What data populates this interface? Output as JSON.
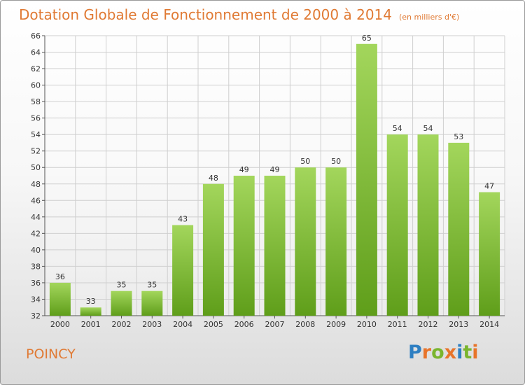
{
  "header": {
    "title": "Dotation Globale de Fonctionnement de 2000 à 2014",
    "unit": "(en milliers d'€)"
  },
  "footer": {
    "commune": "POINCY",
    "logo_text": "Proxiti",
    "logo_colors": [
      "#2e7fc2",
      "#e8742a",
      "#7ab52e",
      "#e8742a",
      "#2e7fc2",
      "#7ab52e",
      "#e8742a"
    ]
  },
  "colors": {
    "title": "#e07a34",
    "bar_top": "#a3d65c",
    "bar_bottom": "#5f9e1a",
    "grid": "#cfcfcf"
  },
  "chart_data": {
    "type": "bar",
    "title": "Dotation Globale de Fonctionnement de 2000 à 2014",
    "xlabel": "",
    "ylabel": "",
    "categories": [
      "2000",
      "2001",
      "2002",
      "2003",
      "2004",
      "2005",
      "2006",
      "2007",
      "2008",
      "2009",
      "2010",
      "2011",
      "2012",
      "2013",
      "2014"
    ],
    "values": [
      36,
      33,
      35,
      35,
      43,
      48,
      49,
      49,
      50,
      50,
      65,
      54,
      54,
      53,
      47
    ],
    "ylim": [
      32,
      66
    ],
    "yticks": [
      32,
      34,
      36,
      38,
      40,
      42,
      44,
      46,
      48,
      50,
      52,
      54,
      56,
      58,
      60,
      62,
      64,
      66
    ],
    "grid": true
  }
}
